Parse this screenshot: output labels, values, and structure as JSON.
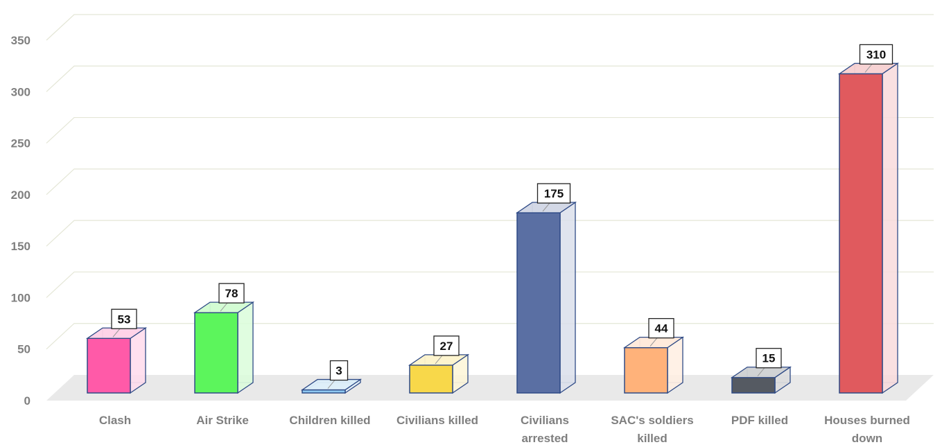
{
  "chart_data": {
    "type": "bar",
    "categories": [
      "Clash",
      "Air Strike",
      "Children killed",
      "Civilians killed",
      "Civilians arrested",
      "SAC's soldiers killed",
      "PDF killed",
      "Houses burned down"
    ],
    "category_lines": [
      [
        "Clash"
      ],
      [
        "Air Strike"
      ],
      [
        "Children killed"
      ],
      [
        "Civilians killed"
      ],
      [
        "Civilians",
        "arrested"
      ],
      [
        "SAC's soldiers",
        "killed"
      ],
      [
        "PDF killed"
      ],
      [
        "Houses burned",
        "down"
      ]
    ],
    "values": [
      53,
      78,
      3,
      27,
      175,
      44,
      15,
      310
    ],
    "value_labels": [
      "53",
      "78",
      "3",
      "27",
      "175",
      "44",
      "15",
      "310"
    ],
    "bar_colors": [
      "#ff5aa8",
      "#5cf55c",
      "#8ec8f0",
      "#f8d84a",
      "#5a6fa3",
      "#ffb27a",
      "#555a62",
      "#e05a5e"
    ],
    "yticks": [
      0,
      50,
      100,
      150,
      200,
      250,
      300,
      350
    ],
    "ytick_labels": [
      "0",
      "50",
      "100",
      "150",
      "200",
      "250",
      "300",
      "350"
    ],
    "ylim": [
      0,
      350
    ],
    "grid": true,
    "legend": "none",
    "style": "3d-column",
    "title": "",
    "xlabel": "",
    "ylabel": ""
  }
}
